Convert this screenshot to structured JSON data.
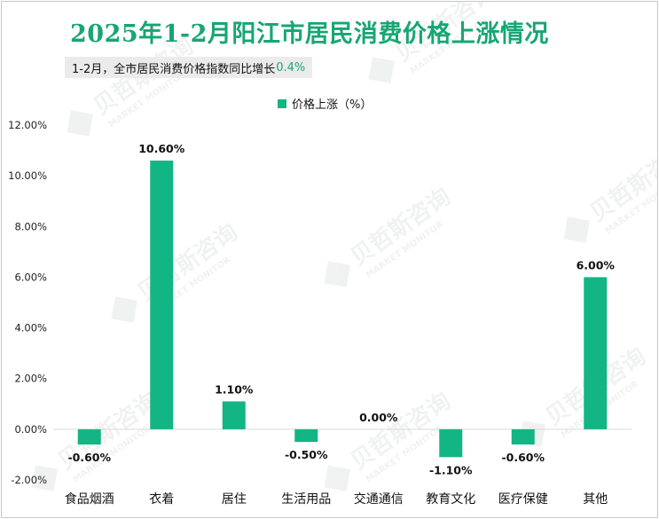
{
  "title": "2025年1-2月阳江市居民消费价格上涨情况",
  "subtitle": {
    "prefix": "1-2月，全市居民消费价格指数同比增长",
    "value": "0.4%"
  },
  "watermark": {
    "cn": "贝哲斯咨询",
    "en": "MARKET MONITOR"
  },
  "colors": {
    "bar": "#12b583",
    "title": "#17a673",
    "grid": "#d9d9d9"
  },
  "chart_data": {
    "type": "bar",
    "categories": [
      "食品烟酒",
      "衣着",
      "居住",
      "生活用品",
      "交通通信",
      "教育文化",
      "医疗保健",
      "其他"
    ],
    "series": [
      {
        "name": "价格上涨（%）",
        "values": [
          -0.6,
          10.6,
          1.1,
          -0.5,
          0.0,
          -1.1,
          -0.6,
          6.0
        ]
      }
    ],
    "data_labels": [
      "-0.60%",
      "10.60%",
      "1.10%",
      "-0.50%",
      "0.00%",
      "-1.10%",
      "-0.60%",
      "6.00%"
    ],
    "yticks": [
      "-2.00%",
      "0.00%",
      "2.00%",
      "4.00%",
      "6.00%",
      "8.00%",
      "10.00%",
      "12.00%"
    ],
    "ylim": [
      -2,
      12
    ],
    "legend": "top-center",
    "grid": false
  }
}
